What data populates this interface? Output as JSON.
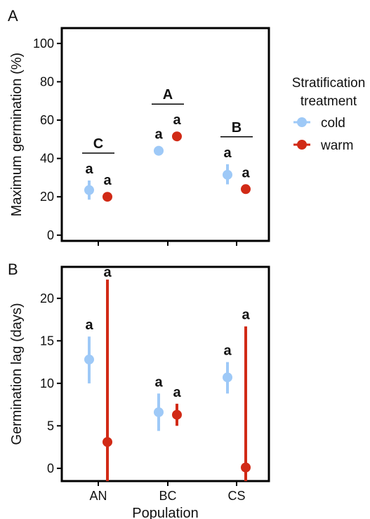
{
  "chart_data": [
    {
      "panel": "A",
      "type": "scatter",
      "ylabel": "Maximum germination (%)",
      "ylim": [
        -3,
        108
      ],
      "yticks": [
        0,
        20,
        40,
        60,
        80,
        100
      ],
      "categories": [
        "AN",
        "BC",
        "CS"
      ],
      "series": [
        {
          "name": "cold",
          "color": "#9ec9f7",
          "values": [
            23.5,
            44,
            31.5
          ],
          "err_low": [
            18.5,
            42,
            26.5
          ],
          "err_high": [
            28.5,
            46.5,
            37
          ]
        },
        {
          "name": "warm",
          "color": "#d12a16",
          "values": [
            20,
            51.5,
            24
          ],
          "err_low": [
            20,
            51.5,
            24
          ],
          "err_high": [
            20,
            51.5,
            24
          ]
        }
      ],
      "sig_letters": [
        [
          "a",
          "a"
        ],
        [
          "a",
          "a"
        ],
        [
          "a",
          "a"
        ]
      ],
      "group_letters": [
        "C",
        "A",
        "B"
      ]
    },
    {
      "panel": "B",
      "type": "scatter",
      "ylabel": "Germination lag (days)",
      "xlabel": "Population",
      "ylim": [
        -1.5,
        23.7
      ],
      "yticks": [
        0,
        5,
        10,
        15,
        20
      ],
      "categories": [
        "AN",
        "BC",
        "CS"
      ],
      "series": [
        {
          "name": "cold",
          "color": "#9ec9f7",
          "values": [
            12.8,
            6.6,
            10.7
          ],
          "err_low": [
            10,
            4.4,
            8.8
          ],
          "err_high": [
            15.5,
            8.8,
            12.5
          ]
        },
        {
          "name": "warm",
          "color": "#d12a16",
          "values": [
            3.1,
            6.3,
            0.1
          ],
          "err_low": [
            -1.5,
            5,
            -1.5
          ],
          "err_high": [
            22.2,
            7.6,
            16.7
          ]
        }
      ],
      "sig_letters": [
        [
          "a",
          "a"
        ],
        [
          "a",
          "a"
        ],
        [
          "a",
          "a"
        ]
      ]
    }
  ],
  "legend": {
    "title_line1": "Stratification",
    "title_line2": "treatment",
    "placement": "right",
    "items": [
      {
        "label": "cold",
        "color": "#9ec9f7"
      },
      {
        "label": "warm",
        "color": "#d12a16"
      }
    ]
  }
}
